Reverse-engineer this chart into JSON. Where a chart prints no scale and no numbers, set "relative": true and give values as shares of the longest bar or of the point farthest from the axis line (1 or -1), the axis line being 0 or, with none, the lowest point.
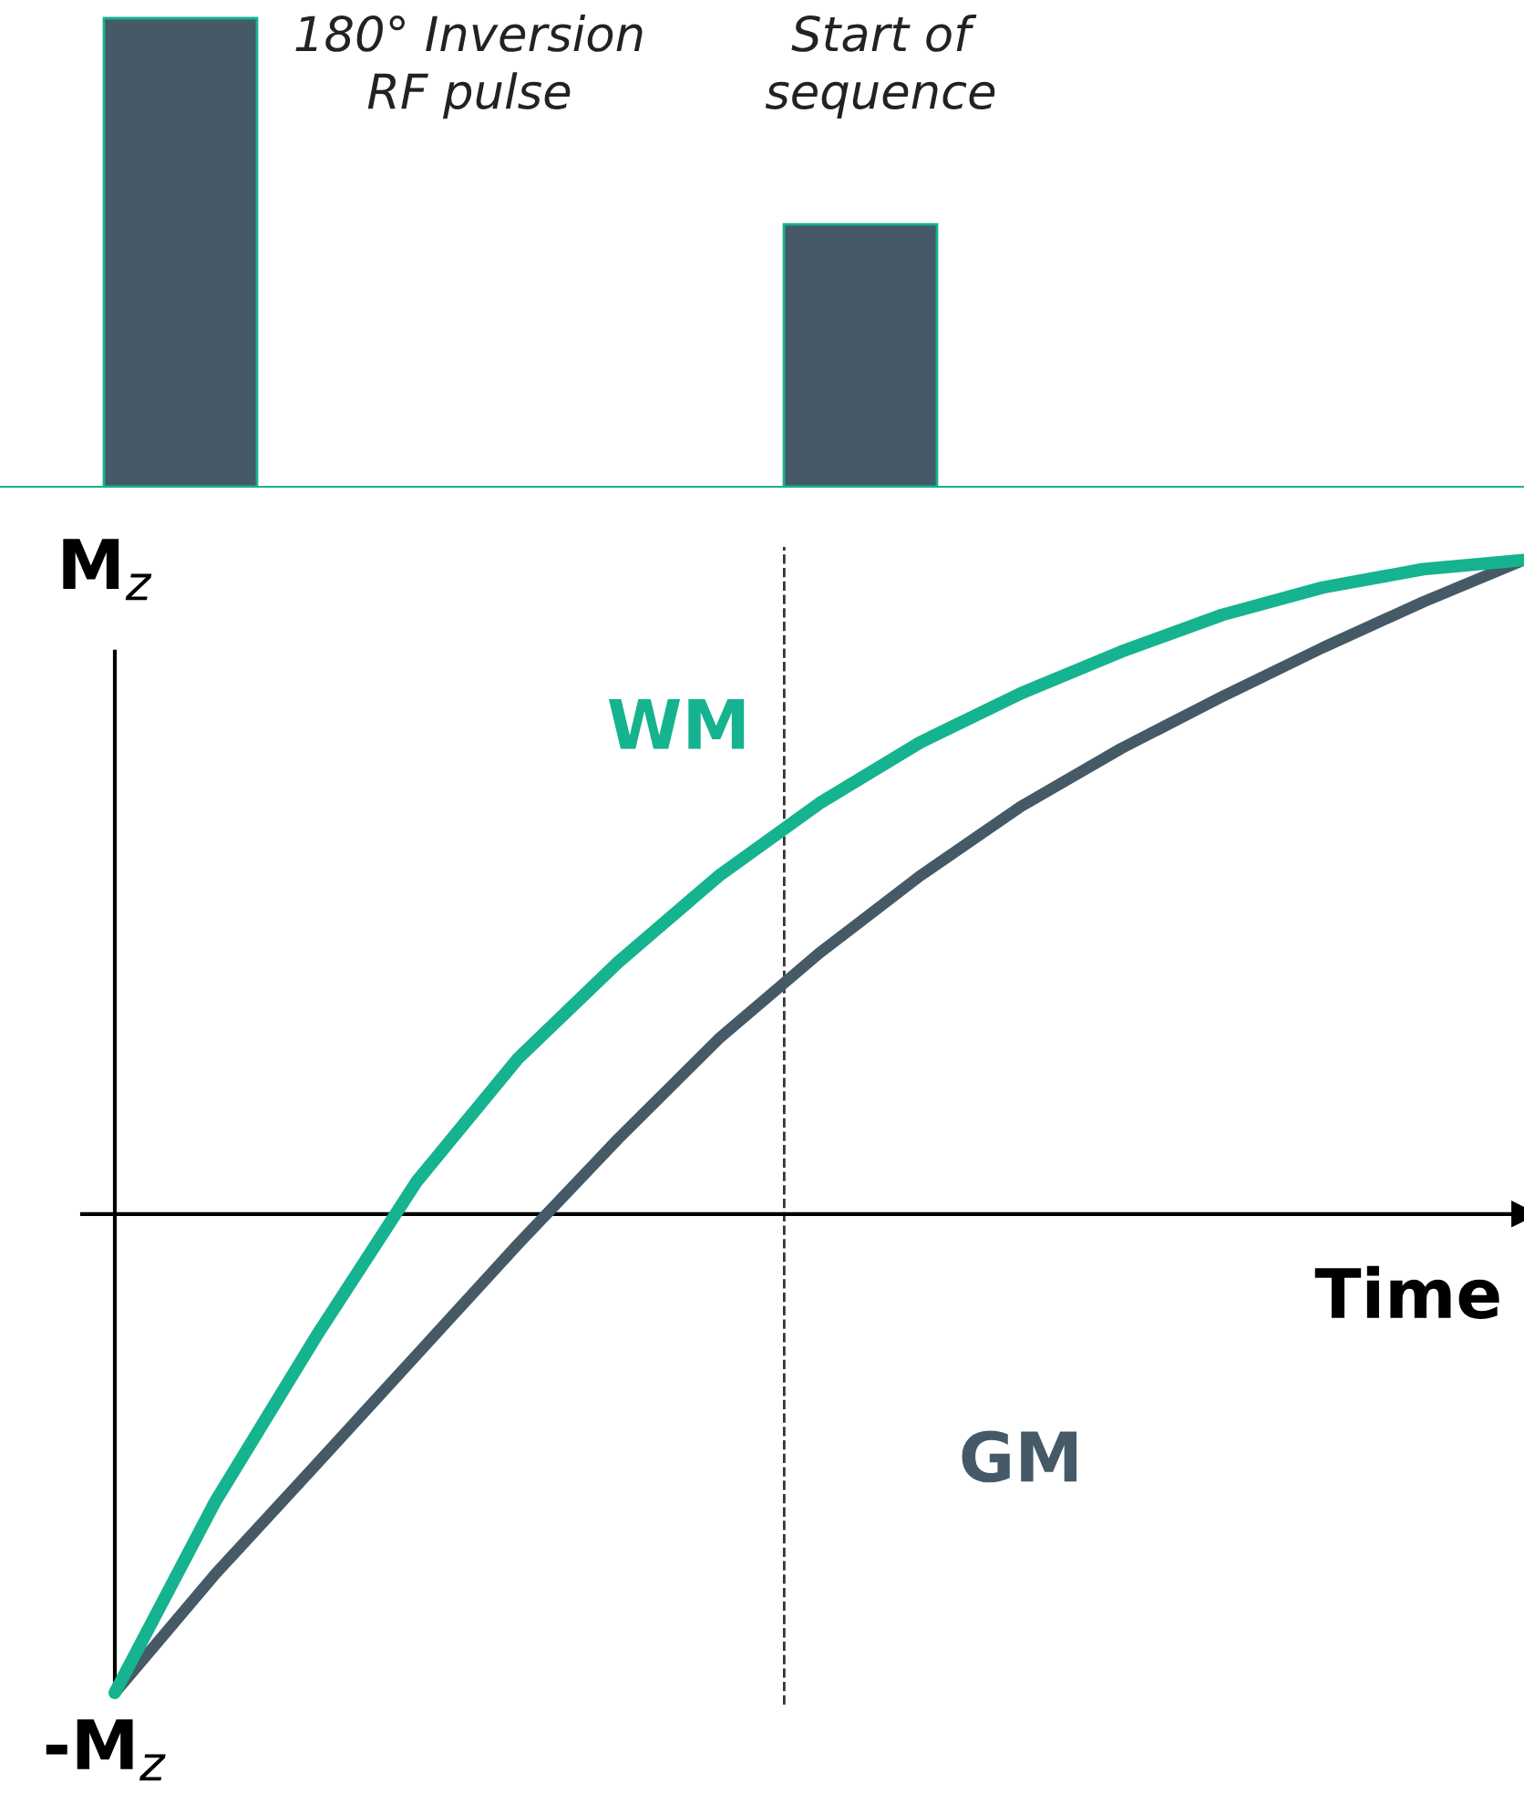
{
  "chart_data": [
    {
      "type": "bar",
      "relative": true,
      "categories": [
        null,
        null
      ],
      "values": [
        1,
        0.56
      ],
      "color": "#455a66",
      "annotations": [
        "180° Inversion RF pulse",
        "Start of sequence"
      ]
    },
    {
      "type": "line",
      "relative": true,
      "categories": [
        null,
        null,
        null,
        null,
        null,
        null,
        null,
        null,
        null,
        null,
        null,
        null,
        null,
        null,
        null
      ],
      "ylabel": "M$_{z}$",
      "xlabel": "Time",
      "annotations": [
        "-M$_{z}$"
      ],
      "series": [
        {
          "name": "WM",
          "color": "#15b38f",
          "values": [
            -0.732,
            -0.439,
            -0.187,
            0.05,
            0.237,
            0.385,
            0.517,
            0.628,
            0.721,
            0.796,
            0.86,
            0.916,
            0.958,
            0.986,
            1.0
          ]
        },
        {
          "name": "GM",
          "color": "#455a66",
          "values": [
            -0.732,
            -0.55,
            -0.383,
            -0.215,
            -0.047,
            0.115,
            0.268,
            0.399,
            0.517,
            0.623,
            0.712,
            0.791,
            0.866,
            0.936,
            1.0
          ]
        }
      ]
    }
  ]
}
